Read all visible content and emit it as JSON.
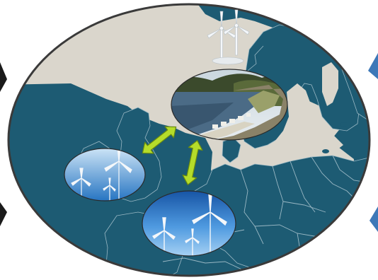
{
  "colors": {
    "background": "#ffffff",
    "land": "#dad6cc",
    "sea": "#1d5b73",
    "country_borders": "#9ab8c4",
    "ellipse_border": "#3a3a3a",
    "arrow_fill": "#b5dc2a",
    "arrow_stroke": "#6a8a10",
    "sky_light": "#cfe6f7",
    "sky_dark": "#1e6fbf",
    "turbine": "#f4f7fa",
    "side_triangle": "#3d78b8"
  },
  "icons": {
    "turbine": "wind-turbine-icon",
    "arrow": "double-arrow-icon"
  },
  "photos": [
    {
      "name": "hydropower-reservoir-photo",
      "subject": "reservoir"
    },
    {
      "name": "wind-farm-photo-uk",
      "subject": "wind-farm"
    },
    {
      "name": "wind-farm-photo-continent",
      "subject": "wind-farm"
    }
  ]
}
